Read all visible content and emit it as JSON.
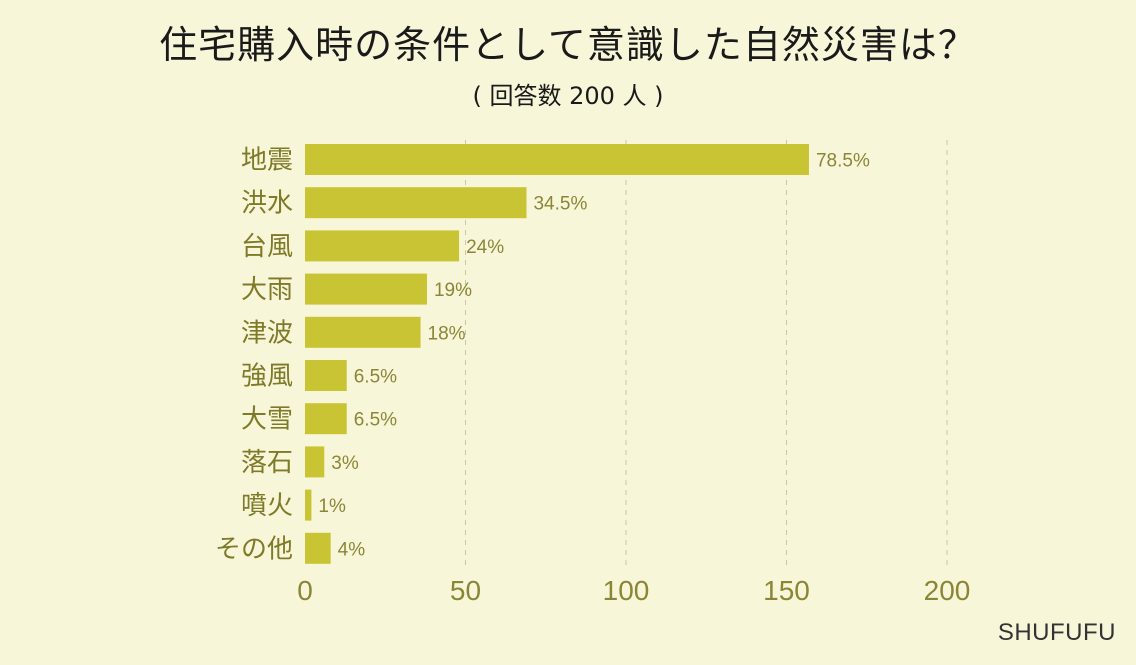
{
  "title": "住宅購入時の条件として意識した自然災害は？",
  "subtitle": "( 回答数 200 人 )",
  "brand": "SHUFUFU",
  "colors": {
    "bar": "#c9c434",
    "background": "#f8f6d9",
    "label": "#7e7a28"
  },
  "chart_data": {
    "type": "bar",
    "orientation": "horizontal",
    "categories": [
      "地震",
      "洪水",
      "台風",
      "大雨",
      "津波",
      "強風",
      "大雪",
      "落石",
      "噴火",
      "その他"
    ],
    "values": [
      157,
      69,
      48,
      38,
      36,
      13,
      13,
      6,
      2,
      8
    ],
    "value_labels": [
      "78.5%",
      "34.5%",
      "24%",
      "19%",
      "18%",
      "6.5%",
      "6.5%",
      "3%",
      "1%",
      "4%"
    ],
    "xlim": [
      0,
      200
    ],
    "xticks": [
      0,
      50,
      100,
      150,
      200
    ],
    "grid": true
  }
}
